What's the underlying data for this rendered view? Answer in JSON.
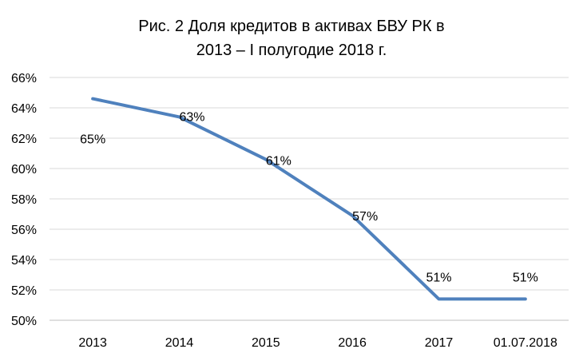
{
  "chart_data": {
    "type": "line",
    "title_line1": "Рис. 2 Доля кредитов в активах БВУ РК в",
    "title_line2": "2013 – I полугодие 2018 г.",
    "categories": [
      "2013",
      "2014",
      "2015",
      "2016",
      "2017",
      "01.07.2018"
    ],
    "series": [
      {
        "values": [
          64.6,
          63.4,
          60.6,
          56.9,
          51.4,
          51.4
        ],
        "data_labels": [
          "65%",
          "63%",
          "61%",
          "57%",
          "51%",
          "51%"
        ],
        "color": "#4f81bd"
      }
    ],
    "ylim": [
      50,
      66
    ],
    "yticks": [
      50,
      52,
      54,
      56,
      58,
      60,
      62,
      64,
      66
    ],
    "ytick_labels": [
      "50%",
      "52%",
      "54%",
      "56%",
      "58%",
      "60%",
      "62%",
      "64%",
      "66%"
    ],
    "xlabel": "",
    "ylabel": "",
    "grid": true,
    "grid_color": "#d9d9d9",
    "legend": "none"
  }
}
